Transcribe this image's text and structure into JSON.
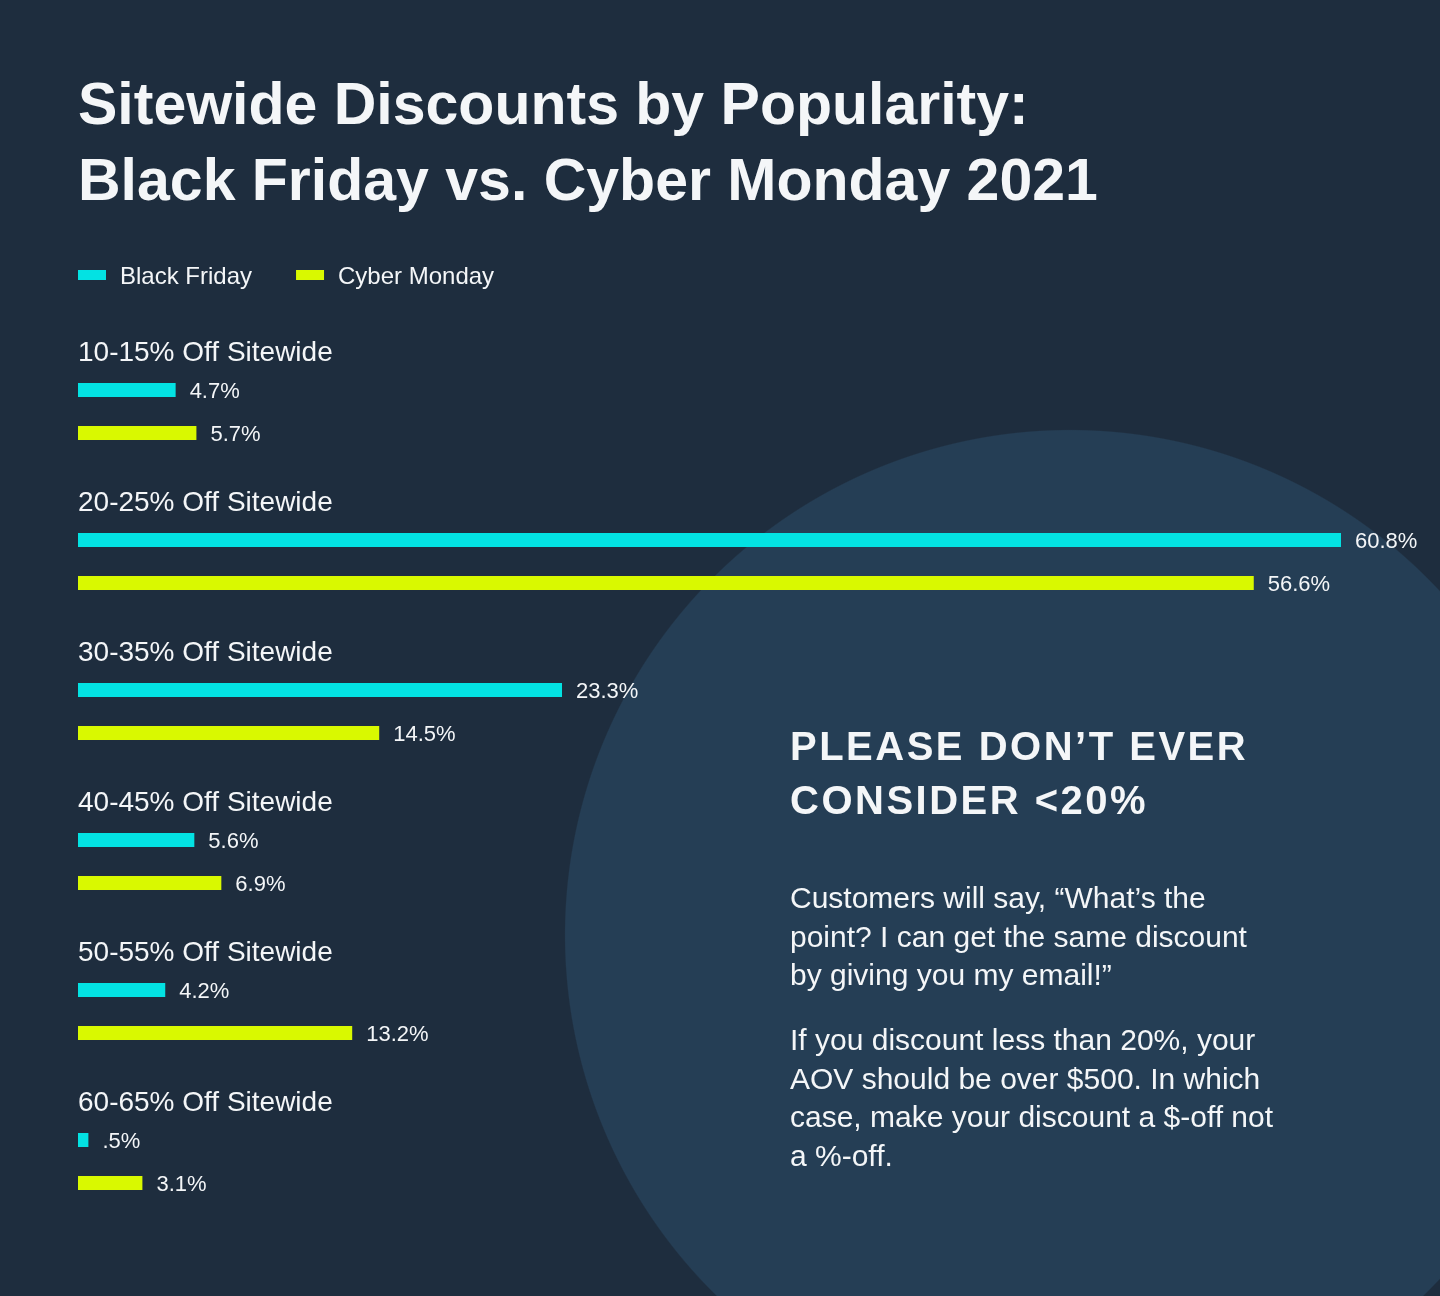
{
  "chart_data": {
    "type": "bar",
    "orientation": "horizontal",
    "title": "Sitewide Discounts by Popularity: Black Friday vs. Cyber Monday 2021",
    "categories": [
      "10-15% Off Sitewide",
      "20-25% Off Sitewide",
      "30-35% Off Sitewide",
      "40-45% Off Sitewide",
      "50-55% Off Sitewide",
      "60-65% Off Sitewide"
    ],
    "series": [
      {
        "name": "Black Friday",
        "color": "#03e2e3",
        "values": [
          4.7,
          60.8,
          23.3,
          5.6,
          4.2,
          0.5
        ],
        "value_labels": [
          "4.7%",
          "60.8%",
          "23.3%",
          "5.6%",
          "4.2%",
          ".5%"
        ]
      },
      {
        "name": "Cyber Monday",
        "color": "#d9f900",
        "values": [
          5.7,
          56.6,
          14.5,
          6.9,
          13.2,
          3.1
        ],
        "value_labels": [
          "5.7%",
          "56.6%",
          "14.5%",
          "6.9%",
          "13.2%",
          "3.1%"
        ]
      }
    ],
    "legend": "top left",
    "tick_labels": "y",
    "annotations": [
      "PLEASE DON’T EVER CONSIDER <20%",
      "Customers will say, “What’s the point? I can get the same discount by giving you my email!”",
      "If you discount less than 20%, your AOV should be over $500. In which case, make your discount a $-off not a %-off."
    ]
  }
}
